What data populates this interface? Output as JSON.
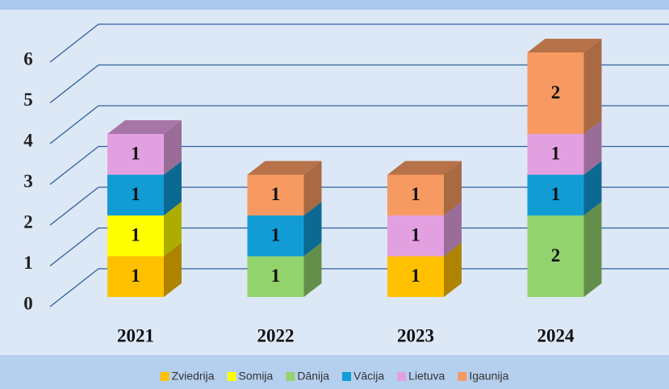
{
  "chart_data": {
    "type": "bar3d-stacked",
    "categories": [
      "2021",
      "2022",
      "2023",
      "2024"
    ],
    "series": [
      {
        "name": "Zviedrija",
        "color": "#ffc000",
        "values": [
          1,
          null,
          1,
          null
        ]
      },
      {
        "name": "Somija",
        "color": "#ffff00",
        "values": [
          1,
          null,
          null,
          null
        ]
      },
      {
        "name": "Dānija",
        "color": "#92d36e",
        "values": [
          null,
          1,
          null,
          2
        ]
      },
      {
        "name": "Vācija",
        "color": "#119cd6",
        "values": [
          1,
          1,
          null,
          1
        ]
      },
      {
        "name": "Lietuva",
        "color": "#e3a0e0",
        "values": [
          1,
          null,
          1,
          1
        ]
      },
      {
        "name": "Igaunija",
        "color": "#f79a62",
        "values": [
          null,
          1,
          1,
          2
        ]
      }
    ],
    "ylim": [
      0,
      6
    ],
    "yticks": [
      0,
      1,
      2,
      3,
      4,
      5,
      6
    ],
    "grid": true,
    "legend": "bottom"
  }
}
